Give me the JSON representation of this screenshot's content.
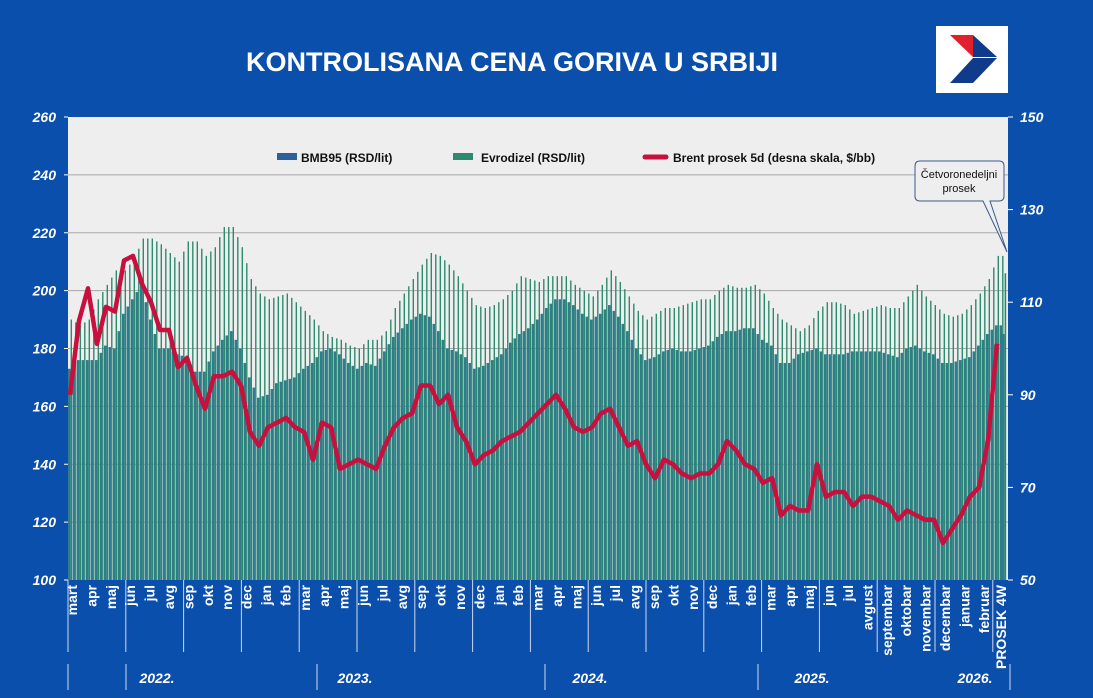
{
  "title": "KONTROLISANA CENA GORIVA U SRBIJI",
  "logo": {
    "name": "logo",
    "colors": {
      "red": "#e0202a",
      "blue": "#103a8a"
    }
  },
  "callout": {
    "line1": "Četvoronedeljni",
    "line2": "prosek"
  },
  "colors": {
    "background": "#0b4fac",
    "plot_bg": "#eeeeee",
    "bmb95": "#2f7d8c",
    "evrodizel": "#2e8a6e",
    "brent": "#c8103e",
    "grid": "#a8a8a8"
  },
  "chart_data": {
    "type": "bar",
    "title": "KONTROLISANA CENA GORIVA U SRBIJI",
    "legend_position": "top",
    "grid": true,
    "y_left": {
      "min": 100,
      "max": 260,
      "ticks": [
        100,
        120,
        140,
        160,
        180,
        200,
        220,
        240,
        260
      ]
    },
    "y_right": {
      "min": 50,
      "max": 150,
      "ticks": [
        50,
        70,
        90,
        110,
        130,
        150
      ]
    },
    "months": [
      "mart",
      "apr",
      "maj",
      "jun",
      "jul",
      "avg",
      "sep",
      "okt",
      "nov",
      "dec",
      "jan",
      "feb",
      "mar",
      "apr",
      "maj",
      "jun",
      "jul",
      "avg",
      "sep",
      "okt",
      "nov",
      "dec",
      "jan",
      "feb",
      "mar",
      "apr",
      "maj",
      "jun",
      "jul",
      "avg",
      "sep",
      "okt",
      "nov",
      "dec",
      "jan",
      "feb",
      "mar",
      "apr",
      "maj",
      "jun",
      "jul",
      "avgust",
      "septembar",
      "oktobar",
      "novembar",
      "decembar",
      "januar",
      "februar"
    ],
    "average_label": "PROSEK 4W",
    "years": [
      "2022.",
      "2023.",
      "2024.",
      "2025.",
      "2026."
    ],
    "series": [
      {
        "name": "BMB95 (RSD/lit)",
        "type": "bar",
        "axis": "left",
        "values": [
          173,
          176,
          176,
          176,
          181,
          180,
          192,
          197,
          202,
          190,
          180,
          180,
          178,
          177,
          172,
          172,
          179,
          183,
          186,
          180,
          170,
          163,
          164,
          168,
          169,
          170,
          173,
          175,
          179,
          180,
          178,
          175,
          173,
          175,
          174,
          179,
          184,
          187,
          190,
          192,
          191,
          186,
          180,
          179,
          177,
          173,
          174,
          176,
          178,
          182,
          185,
          187,
          190,
          194,
          197,
          197,
          195,
          192,
          190,
          192,
          195,
          191,
          186,
          180,
          176,
          177,
          179,
          180,
          179,
          179,
          180,
          181,
          184,
          186,
          186,
          187,
          187,
          183,
          181,
          175,
          175,
          178,
          179,
          180,
          178,
          178,
          178,
          179,
          179,
          179,
          179,
          178,
          177,
          180,
          181,
          179,
          178,
          175,
          175,
          176,
          177,
          181,
          185,
          188
        ],
        "average": 185
      },
      {
        "name": "Evrodizel (RSD/lit)",
        "type": "bar",
        "axis": "left",
        "values": [
          190,
          188,
          190,
          197,
          202,
          207,
          207,
          211,
          218,
          218,
          216,
          213,
          210,
          217,
          217,
          212,
          215,
          222,
          222,
          215,
          204,
          199,
          197,
          198,
          199,
          196,
          193,
          190,
          186,
          184,
          183,
          181,
          180,
          183,
          183,
          186,
          194,
          199,
          204,
          209,
          213,
          212,
          209,
          205,
          200,
          195,
          194,
          195,
          197,
          200,
          205,
          204,
          203,
          205,
          205,
          205,
          202,
          200,
          198,
          202,
          207,
          203,
          198,
          193,
          190,
          192,
          194,
          194,
          195,
          196,
          197,
          197,
          200,
          202,
          201,
          201,
          202,
          199,
          194,
          190,
          188,
          186,
          188,
          193,
          196,
          196,
          195,
          192,
          193,
          194,
          195,
          194,
          194,
          198,
          202,
          198,
          195,
          192,
          191,
          192,
          195,
          199,
          204,
          212
        ],
        "average": 206
      },
      {
        "name": "Brent prosek  5d (desna skala, $/bb)",
        "type": "line",
        "axis": "right",
        "values": [
          90,
          106,
          113,
          101,
          109,
          108,
          119,
          120,
          114,
          110,
          104,
          104,
          96,
          98,
          92,
          87,
          94,
          94,
          95,
          92,
          82,
          79,
          83,
          84,
          85,
          83,
          82,
          76,
          84,
          83,
          74,
          75,
          76,
          75,
          74,
          79,
          83,
          85,
          86,
          92,
          92,
          88,
          90,
          83,
          80,
          75,
          77,
          78,
          80,
          81,
          82,
          84,
          86,
          88,
          90,
          87,
          83,
          82,
          83,
          86,
          87,
          83,
          79,
          80,
          75,
          72,
          76,
          75,
          73,
          72,
          73,
          73,
          75,
          80,
          78,
          75,
          74,
          71,
          72,
          64,
          66,
          65,
          65,
          75,
          68,
          69,
          69,
          66,
          68,
          68,
          67,
          66,
          63,
          65,
          64,
          63,
          63,
          58,
          61,
          64,
          68,
          70,
          80,
          101
        ]
      }
    ]
  }
}
